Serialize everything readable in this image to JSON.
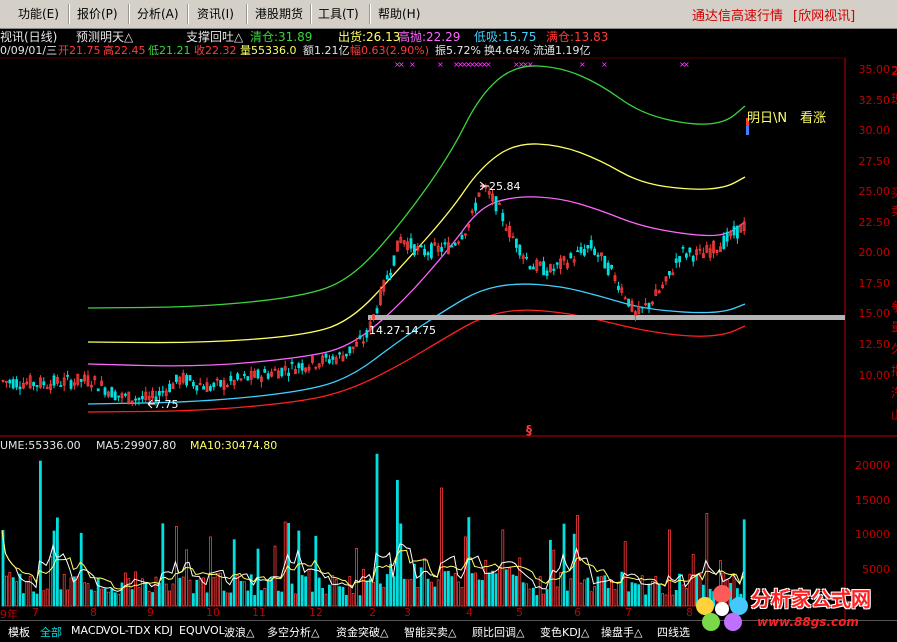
{
  "menu": {
    "items": [
      "功能(E)",
      "报价(P)",
      "分析(A)",
      "资讯(I)",
      "港股期货",
      "工具(T)",
      "帮助(H)"
    ],
    "right_title": "通达信高速行情",
    "right_link": "[欣网视讯]"
  },
  "chart_header": {
    "title": "视讯(日线)",
    "indicator": "预测明天△",
    "line2": {
      "date": "0/09/01/三",
      "open": "开21.75",
      "high": "高22.45",
      "low": "低21.21",
      "close": "收22.32",
      "volume": "量55336.0",
      "amount": "额1.21亿",
      "change": "幅0.63(2.90%)",
      "amplitude": "振5.72%",
      "turnover": "换4.64%",
      "float": "流通1.19亿"
    },
    "signals": {
      "support": "支撑回吐△",
      "clear": "清仓:31.89",
      "sell": "出货:26.13",
      "high_sell": "高抛:22.29",
      "low_buy": "低吸:15.75",
      "add": "满仓:13.83"
    }
  },
  "annotations": {
    "peak": "25.84",
    "trough": "7.75",
    "support_zone": "14.27-14.75",
    "tomorrow": "明日\\N",
    "outlook": "看涨",
    "marker": "§"
  },
  "price_axis": [
    "35.00",
    "32.50",
    "30.00",
    "27.50",
    "25.00",
    "22.50",
    "20.00",
    "17.50",
    "15.00",
    "12.50",
    "10.00"
  ],
  "volume_header": {
    "volume": "UME:55336.00",
    "ma5": "MA5:29907.80",
    "ma10": "MA10:30474.80"
  },
  "volume_axis": [
    "20000",
    "15000",
    "10000",
    "5000"
  ],
  "x_axis": [
    "9年",
    "7",
    "8",
    "9",
    "10",
    "11",
    "12",
    "2",
    "3",
    "4",
    "5",
    "6",
    "7",
    "8"
  ],
  "tabs": [
    "模板",
    "全部",
    "MACD",
    "VOL-TDX",
    "KDJ",
    "EQUVOL",
    "波浪△",
    "多空分析△",
    "资金突破△",
    "智能买卖△",
    "顾比回调△",
    "变色KDJ△",
    "操盘手△",
    "四线选"
  ],
  "logo": {
    "text": "分析家公式网",
    "url": "www.88gs.com"
  },
  "right_column": [
    "2",
    "现",
    "买",
    "卖",
    "争",
    "量",
    "久",
    "指",
    "汽",
    "山"
  ],
  "colors": {
    "up": "#ff3b3b",
    "down": "#00e0e0",
    "band_outer": "#3cd43c",
    "band_upper": "#ffff66",
    "band_mid": "#ff66ff",
    "band_lower": "#40d0ff",
    "band_floor": "#ff2020",
    "support_line": "#b4b4b4",
    "axis": "#c00000"
  }
}
